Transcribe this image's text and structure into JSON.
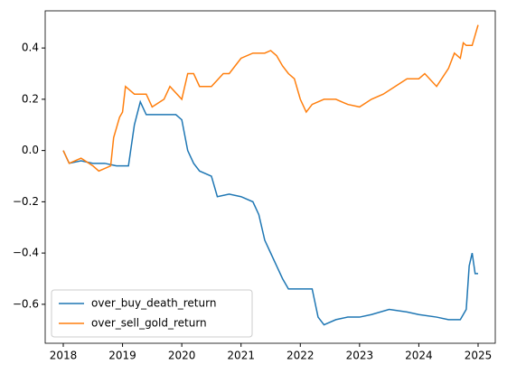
{
  "chart_data": {
    "type": "line",
    "xlim": [
      2017.695,
      2025.29
    ],
    "xticks": [
      2018,
      2019,
      2020,
      2021,
      2022,
      2023,
      2024,
      2025
    ],
    "ylim": [
      -0.752,
      0.545
    ],
    "yticks": [
      {
        "value": -0.6,
        "label": "−0.6"
      },
      {
        "value": -0.4,
        "label": "−0.4"
      },
      {
        "value": -0.2,
        "label": "−0.2"
      },
      {
        "value": 0,
        "label": "0.0"
      },
      0.2,
      0.4
    ],
    "legend": "lower left",
    "series": [
      {
        "name": "over_buy_death_return",
        "color": "#1f77b4",
        "x": [
          2018.0,
          2018.1,
          2018.3,
          2018.5,
          2018.7,
          2018.9,
          2019.1,
          2019.2,
          2019.3,
          2019.4,
          2019.7,
          2019.9,
          2020.0,
          2020.1,
          2020.2,
          2020.3,
          2020.5,
          2020.6,
          2020.8,
          2021.0,
          2021.2,
          2021.3,
          2021.4,
          2021.5,
          2021.6,
          2021.7,
          2021.8,
          2022.0,
          2022.2,
          2022.3,
          2022.4,
          2022.6,
          2022.8,
          2023.0,
          2023.2,
          2023.5,
          2023.8,
          2024.0,
          2024.3,
          2024.5,
          2024.7,
          2024.8,
          2024.85,
          2024.9,
          2024.95,
          2025.0
        ],
        "values": [
          0,
          -0.05,
          -0.04,
          -0.05,
          -0.05,
          -0.06,
          -0.06,
          0.1,
          0.19,
          0.14,
          0.14,
          0.14,
          0.12,
          0.0,
          -0.05,
          -0.08,
          -0.1,
          -0.18,
          -0.17,
          -0.18,
          -0.2,
          -0.25,
          -0.35,
          -0.4,
          -0.45,
          -0.5,
          -0.54,
          -0.54,
          -0.54,
          -0.65,
          -0.68,
          -0.66,
          -0.65,
          -0.65,
          -0.64,
          -0.62,
          -0.63,
          -0.64,
          -0.65,
          -0.66,
          -0.66,
          -0.62,
          -0.45,
          -0.4,
          -0.48,
          -0.48
        ]
      },
      {
        "name": "over_sell_gold_return",
        "color": "#ff7f0e",
        "x": [
          2018.0,
          2018.1,
          2018.3,
          2018.5,
          2018.6,
          2018.8,
          2018.85,
          2018.95,
          2019.0,
          2019.05,
          2019.2,
          2019.4,
          2019.5,
          2019.7,
          2019.8,
          2020.0,
          2020.1,
          2020.2,
          2020.3,
          2020.5,
          2020.7,
          2020.8,
          2020.9,
          2021.0,
          2021.2,
          2021.4,
          2021.5,
          2021.6,
          2021.7,
          2021.8,
          2021.9,
          2022.0,
          2022.1,
          2022.2,
          2022.4,
          2022.6,
          2022.8,
          2023.0,
          2023.2,
          2023.4,
          2023.6,
          2023.8,
          2024.0,
          2024.1,
          2024.3,
          2024.5,
          2024.6,
          2024.7,
          2024.75,
          2024.8,
          2024.9,
          2025.0
        ],
        "values": [
          0,
          -0.05,
          -0.03,
          -0.06,
          -0.08,
          -0.06,
          0.05,
          0.13,
          0.15,
          0.25,
          0.22,
          0.22,
          0.17,
          0.2,
          0.25,
          0.2,
          0.3,
          0.3,
          0.25,
          0.25,
          0.3,
          0.3,
          0.33,
          0.36,
          0.38,
          0.38,
          0.39,
          0.37,
          0.33,
          0.3,
          0.28,
          0.2,
          0.15,
          0.18,
          0.2,
          0.2,
          0.18,
          0.17,
          0.2,
          0.22,
          0.25,
          0.28,
          0.28,
          0.3,
          0.25,
          0.32,
          0.38,
          0.36,
          0.42,
          0.41,
          0.41,
          0.49
        ]
      }
    ]
  }
}
